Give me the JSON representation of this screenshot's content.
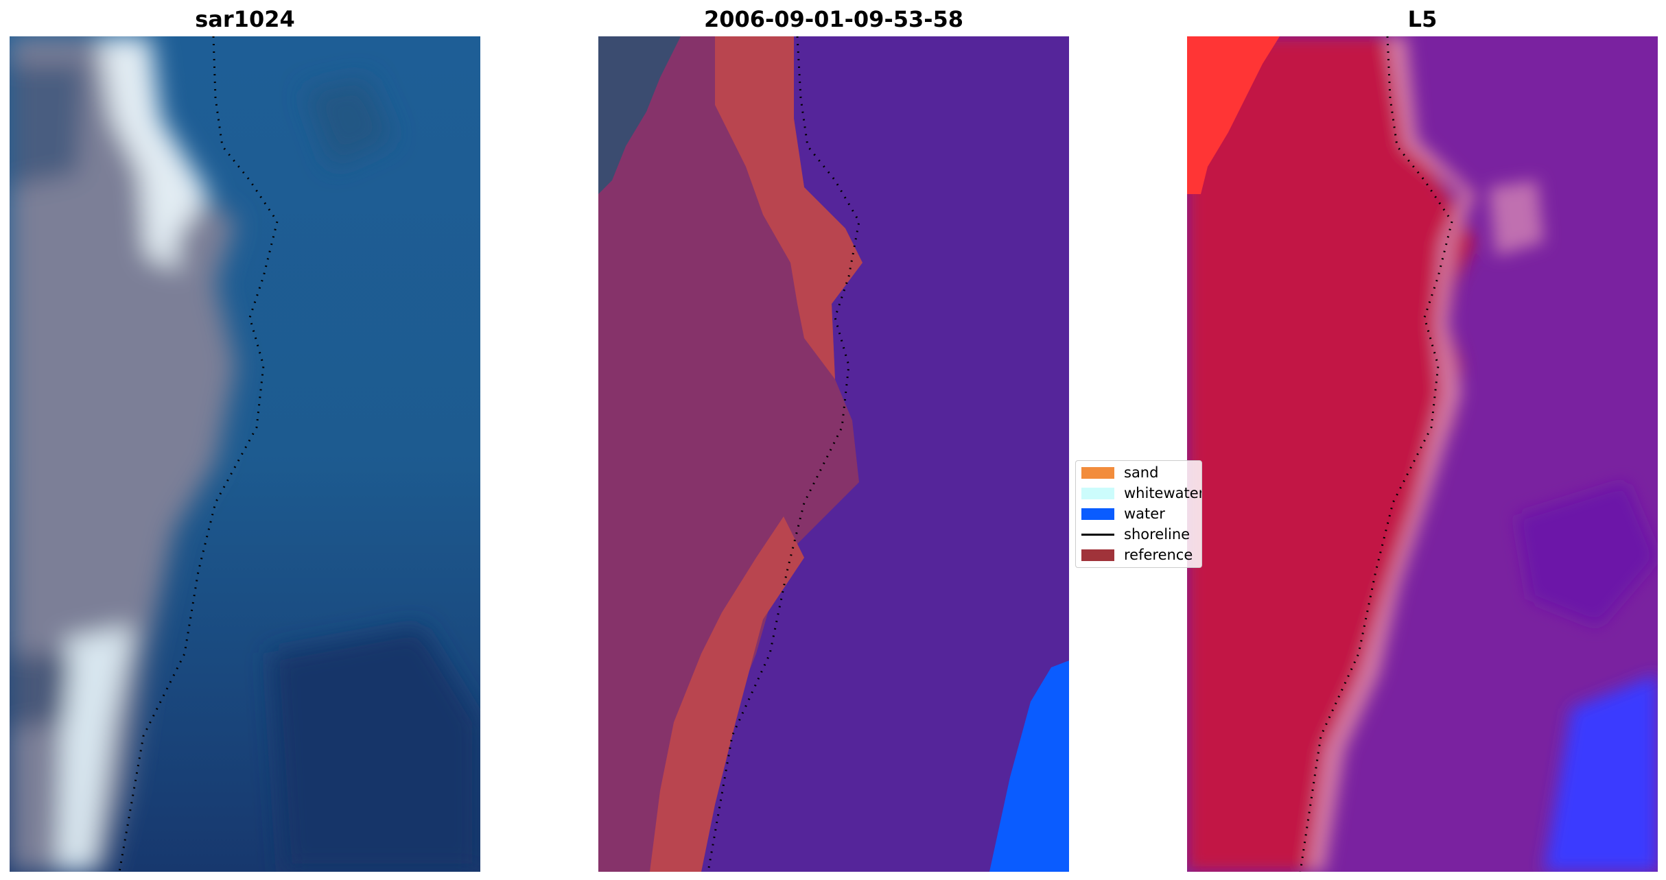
{
  "panels": [
    {
      "title": "sar1024"
    },
    {
      "title": "2006-09-01-09-53-58"
    },
    {
      "title": "L5"
    }
  ],
  "legend": {
    "items": [
      {
        "label": "sand",
        "color": "#f28c3c",
        "kind": "patch"
      },
      {
        "label": "whitewater",
        "color": "#ccfcfc",
        "kind": "patch"
      },
      {
        "label": "water",
        "color": "#0a5cff",
        "kind": "patch"
      },
      {
        "label": "shoreline",
        "color": "#000000",
        "kind": "line"
      },
      {
        "label": "reference",
        "color": "#a0333a",
        "kind": "patch"
      }
    ]
  },
  "colors": {
    "sar_water": "#1f5a92",
    "sar_land": "#7a7f96",
    "sar_whitewater": "#dfe9f1",
    "class_water_deep": "#55259a",
    "class_land": "#86336a",
    "class_reference": "#b9454f",
    "class_water": "#0a5cff",
    "l5_land": "#c21244",
    "l5_water": "#7a22a0",
    "l5_bright_red": "#ff3535",
    "l5_blue": "#3a3aff"
  }
}
